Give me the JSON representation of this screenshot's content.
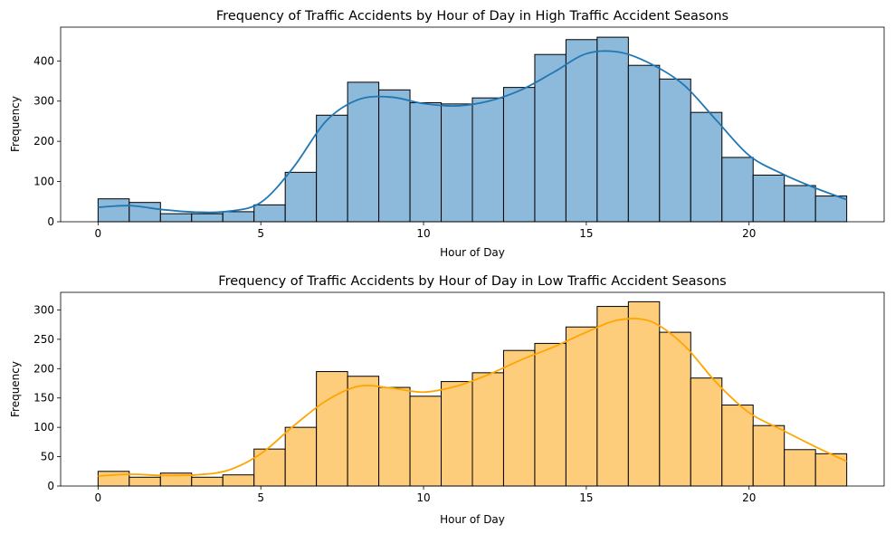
{
  "chart_data": [
    {
      "type": "histogram",
      "title": "Frequency of Traffic Accidents by Hour of Day in High Traffic Accident Seasons",
      "xlabel": "Hour of Day",
      "ylabel": "Frequency",
      "xlim": [
        -1.15,
        24.15
      ],
      "ylim": [
        0,
        484
      ],
      "xticks": [
        0,
        5,
        10,
        15,
        20
      ],
      "yticks": [
        0,
        100,
        200,
        300,
        400
      ],
      "bin_edges": [
        0,
        0.958,
        1.917,
        2.875,
        3.833,
        4.792,
        5.75,
        6.708,
        7.667,
        8.625,
        9.583,
        10.542,
        11.5,
        12.458,
        13.417,
        14.375,
        15.333,
        16.292,
        17.25,
        18.208,
        19.167,
        20.125,
        21.083,
        22.042,
        23
      ],
      "values": [
        57,
        48,
        20,
        20,
        25,
        42,
        123,
        265,
        347,
        328,
        296,
        293,
        308,
        334,
        416,
        453,
        459,
        389,
        355,
        272,
        160,
        116,
        90,
        64
      ],
      "kde": {
        "x": [
          0,
          1,
          2,
          3,
          4,
          5,
          6,
          7,
          8,
          9,
          10,
          11,
          12,
          13,
          14,
          15,
          16,
          17,
          18,
          19,
          20,
          21,
          22,
          23
        ],
        "y": [
          36,
          40,
          30,
          24,
          26,
          48,
          135,
          250,
          304,
          310,
          294,
          288,
          300,
          328,
          372,
          418,
          422,
          392,
          340,
          252,
          165,
          120,
          85,
          55
        ]
      },
      "bar_color": "#8db9da",
      "line_color": "#1f77b4",
      "grid": false,
      "legend": "none"
    },
    {
      "type": "histogram",
      "title": "Frequency of Traffic Accidents by Hour of Day in Low Traffic Accident Seasons",
      "xlabel": "Hour of Day",
      "ylabel": "Frequency",
      "xlim": [
        -1.15,
        24.15
      ],
      "ylim": [
        0,
        330
      ],
      "xticks": [
        0,
        5,
        10,
        15,
        20
      ],
      "yticks": [
        0,
        50,
        100,
        150,
        200,
        250,
        300
      ],
      "bin_edges": [
        0,
        0.958,
        1.917,
        2.875,
        3.833,
        4.792,
        5.75,
        6.708,
        7.667,
        8.625,
        9.583,
        10.542,
        11.5,
        12.458,
        13.417,
        14.375,
        15.333,
        16.292,
        17.25,
        18.208,
        19.167,
        20.125,
        21.083,
        22.042,
        23
      ],
      "values": [
        25,
        15,
        22,
        15,
        19,
        63,
        100,
        195,
        187,
        168,
        153,
        178,
        193,
        231,
        243,
        271,
        306,
        314,
        262,
        184,
        138,
        103,
        62,
        55
      ],
      "kde": {
        "x": [
          0,
          1,
          2,
          3,
          4,
          5,
          6,
          7,
          8,
          9,
          10,
          11,
          12,
          13,
          14,
          15,
          16,
          17,
          18,
          19,
          20,
          21,
          22,
          23
        ],
        "y": [
          17,
          20,
          18,
          19,
          27,
          55,
          102,
          145,
          170,
          167,
          160,
          170,
          190,
          215,
          237,
          262,
          283,
          280,
          240,
          176,
          125,
          96,
          68,
          42
        ]
      },
      "bar_color": "#fecd7c",
      "line_color": "#ffa500",
      "grid": false,
      "legend": "none"
    }
  ]
}
